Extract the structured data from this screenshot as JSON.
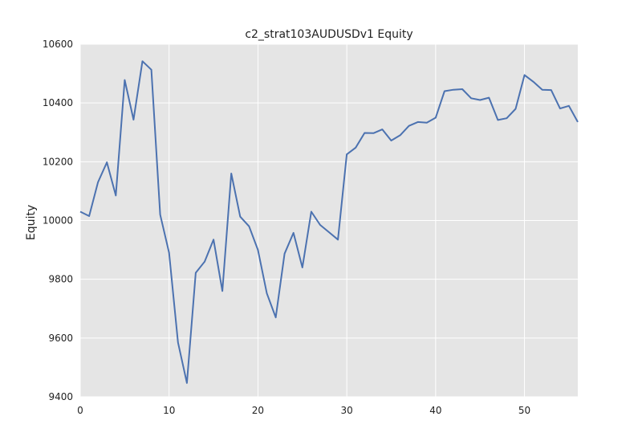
{
  "chart_data": {
    "type": "line",
    "title": "c2_strat103AUDUSDv1 Equity",
    "xlabel": "",
    "ylabel": "Equity",
    "xlim": [
      0,
      56
    ],
    "ylim": [
      9400,
      10600
    ],
    "xticks": [
      0,
      10,
      20,
      30,
      40,
      50
    ],
    "yticks": [
      9400,
      9600,
      9800,
      10000,
      10200,
      10400,
      10600
    ],
    "grid": true,
    "background": "#e5e5e5",
    "grid_color": "#ffffff",
    "line_color": "#4c72b0",
    "series": [
      {
        "x": [
          0,
          1,
          2,
          3,
          4,
          5,
          6,
          7,
          8,
          9,
          10,
          11,
          12,
          13,
          14,
          15,
          16,
          17,
          18,
          19,
          20,
          21,
          22,
          23,
          24,
          25,
          26,
          27,
          28,
          29,
          30,
          31,
          32,
          33,
          34,
          35,
          36,
          37,
          38,
          39,
          40,
          41,
          42,
          43,
          44,
          45,
          46,
          47,
          48,
          49,
          50,
          51,
          52,
          53,
          54,
          55,
          56
        ],
        "values": [
          10030,
          10015,
          10130,
          10198,
          10085,
          10478,
          10343,
          10542,
          10513,
          10020,
          9890,
          9585,
          9447,
          9822,
          9860,
          9935,
          9760,
          10160,
          10013,
          9980,
          9900,
          9752,
          9670,
          9887,
          9958,
          9840,
          10030,
          9985,
          9960,
          9935,
          10225,
          10248,
          10298,
          10297,
          10310,
          10272,
          10290,
          10322,
          10335,
          10333,
          10350,
          10440,
          10445,
          10447,
          10416,
          10410,
          10418,
          10342,
          10348,
          10380,
          10495,
          10472,
          10445,
          10444,
          10381,
          10390,
          10335
        ]
      }
    ]
  }
}
